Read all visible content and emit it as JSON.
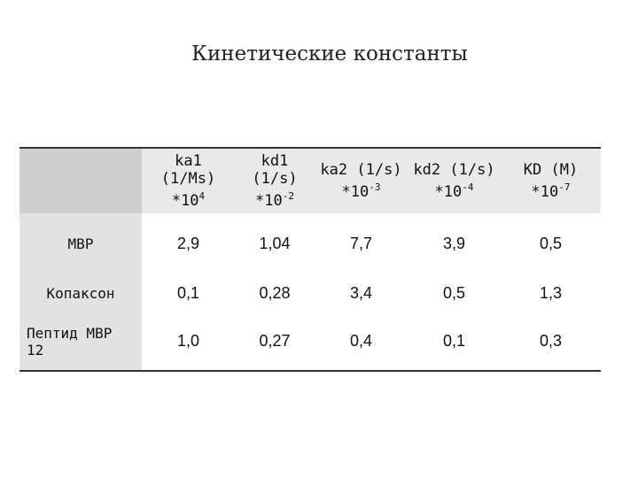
{
  "title": "Кинетические константы",
  "table": {
    "header": [
      {
        "lines": [
          "ka1",
          "(1/Ms)",
          "*10"
        ],
        "sup": "4"
      },
      {
        "lines": [
          "kd1",
          "(1/s)",
          "*10"
        ],
        "sup": "-2"
      },
      {
        "lines": [
          "ka2 (1/s)",
          "*10"
        ],
        "sup": "-3"
      },
      {
        "lines": [
          "kd2 (1/s)",
          "*10"
        ],
        "sup": "-4"
      },
      {
        "lines": [
          "KD (M)",
          "*10"
        ],
        "sup": "-7"
      }
    ],
    "rows": [
      [
        "MBP",
        "2,9",
        "1,04",
        "7,7",
        "3,9",
        "0,5"
      ],
      [
        "Копаксон",
        "0,1",
        "0,28",
        "3,4",
        "0,5",
        "1,3"
      ],
      [
        "Пептид MBP 12",
        "1,0",
        "0,27",
        "0,4",
        "0,1",
        "0,3"
      ]
    ]
  }
}
